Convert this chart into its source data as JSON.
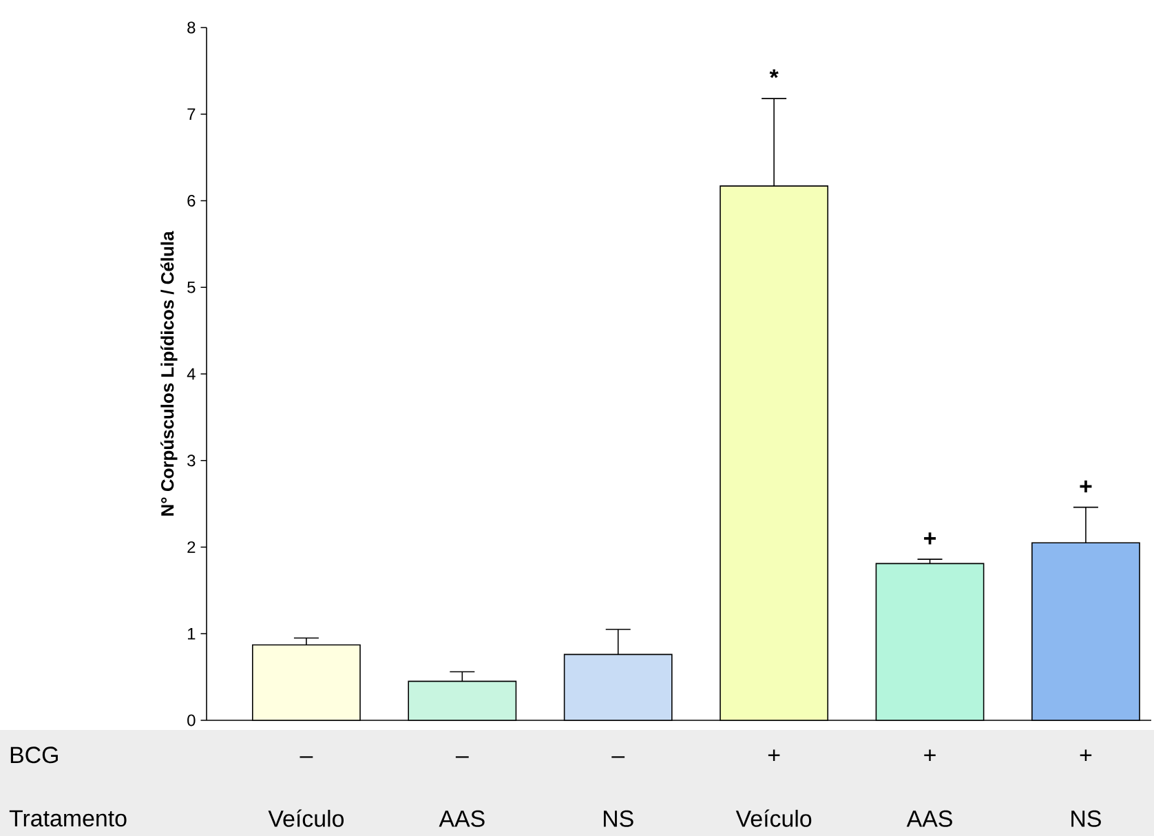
{
  "chart_data": {
    "type": "bar",
    "ylabel": "N° Corpúsculos Lipídicos / Célula",
    "categories": [
      "Veículo",
      "AAS",
      "NS",
      "Veículo",
      "AAS",
      "NS"
    ],
    "values": [
      0.87,
      0.45,
      0.76,
      6.17,
      1.81,
      2.05
    ],
    "colors": [
      "#ffffe0",
      "#c8f5e0",
      "#c8dcf5",
      "#f5ffb8",
      "#b4f5dc",
      "#8cb8f0"
    ],
    "errors": [
      [
        0.87,
        0.95
      ],
      [
        0.45,
        0.56
      ],
      [
        0.76,
        1.05
      ],
      [
        6.17,
        7.18
      ],
      [
        1.81,
        1.86
      ],
      [
        2.05,
        2.46
      ]
    ],
    "ylim": [
      0,
      8
    ],
    "yticks": [
      0,
      1,
      2,
      3,
      4,
      5,
      6,
      7,
      8
    ],
    "annotations": [
      "BCG",
      "Tratamento",
      "–",
      "–",
      "–",
      "+",
      "+",
      "+",
      "*",
      "+",
      "+"
    ]
  }
}
